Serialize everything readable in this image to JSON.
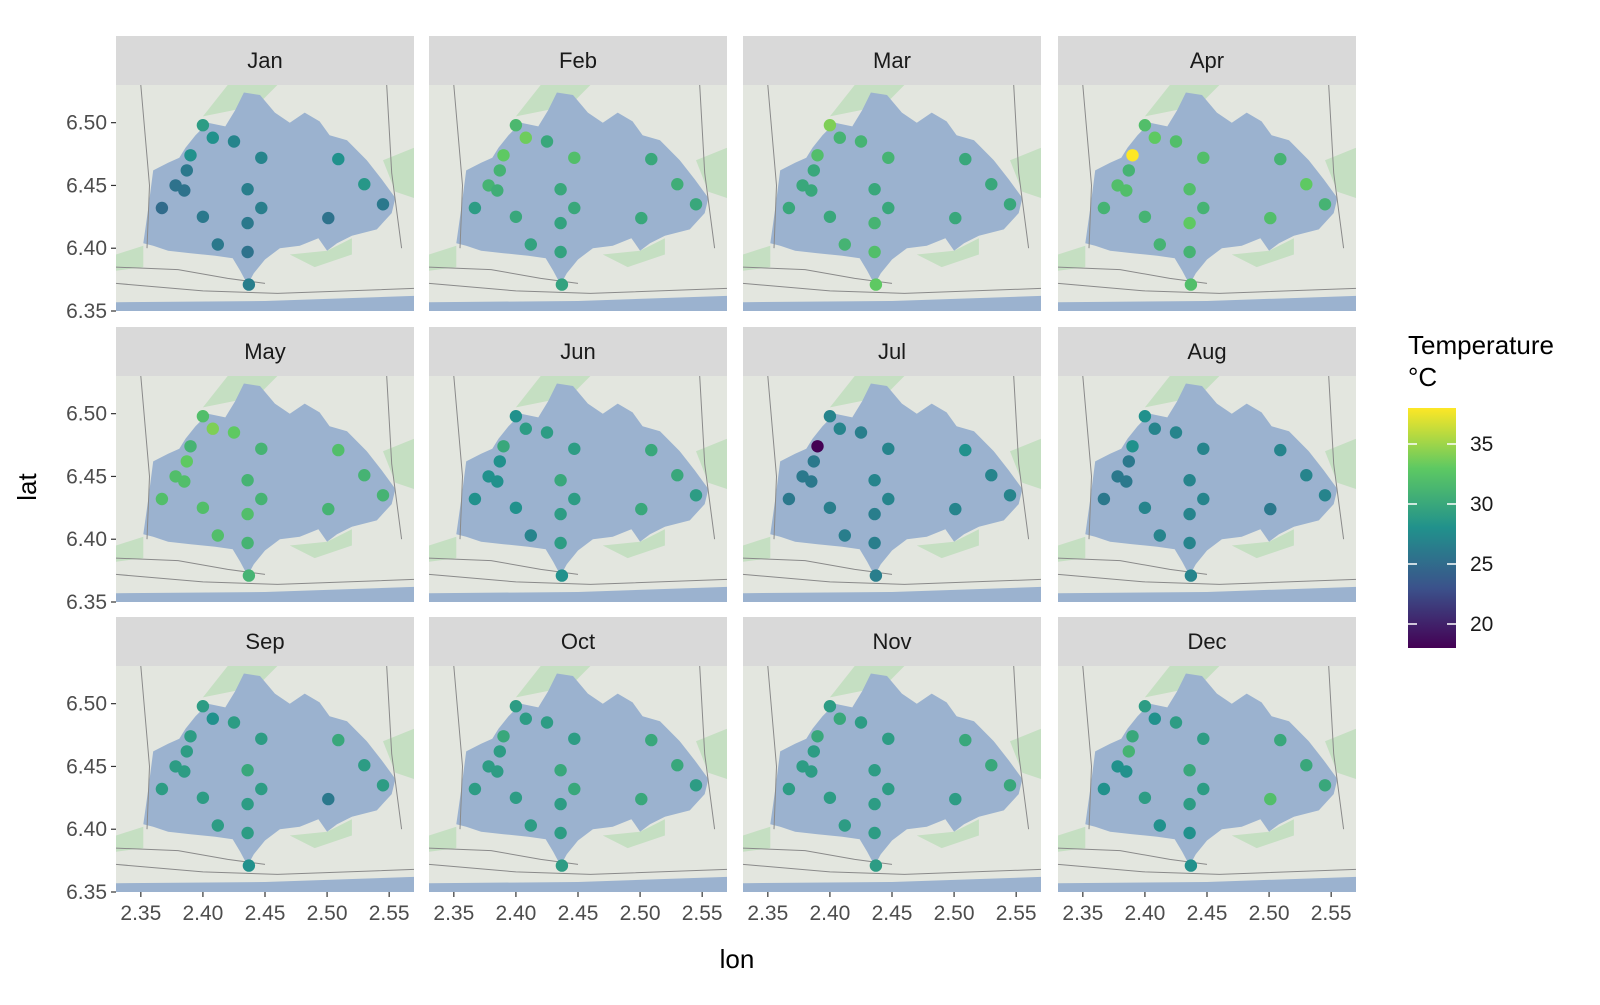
{
  "chart_data": {
    "type": "scatter",
    "subtype": "faceted map scatter (12 panels, 3 rows x 4 columns)",
    "xlabel": "lon",
    "ylabel": "lat",
    "xlim": [
      2.33,
      2.57
    ],
    "ylim": [
      6.35,
      6.53
    ],
    "x_ticks": [
      "2.35",
      "2.40",
      "2.45",
      "2.50",
      "2.55"
    ],
    "y_ticks": [
      "6.35",
      "6.40",
      "6.45",
      "6.50"
    ],
    "grid": false,
    "legend": {
      "title": "Temperature\n°C",
      "position": "right",
      "type": "colorbar",
      "range": [
        18,
        38
      ],
      "ticks": [
        "20",
        "25",
        "30",
        "35"
      ],
      "palette": "viridis",
      "colors": [
        "#440154",
        "#3b528b",
        "#21918c",
        "#5ec962",
        "#fde725"
      ]
    },
    "map_colors": {
      "water": "#9bb2cf",
      "land": "#e3e6df",
      "green": "#c5dfc2"
    },
    "stations": [
      {
        "lon": 2.367,
        "lat": 6.432
      },
      {
        "lon": 2.378,
        "lat": 6.45
      },
      {
        "lon": 2.385,
        "lat": 6.446
      },
      {
        "lon": 2.387,
        "lat": 6.462
      },
      {
        "lon": 2.39,
        "lat": 6.474
      },
      {
        "lon": 2.4,
        "lat": 6.498
      },
      {
        "lon": 2.408,
        "lat": 6.488
      },
      {
        "lon": 2.4,
        "lat": 6.425
      },
      {
        "lon": 2.412,
        "lat": 6.403
      },
      {
        "lon": 2.425,
        "lat": 6.485
      },
      {
        "lon": 2.436,
        "lat": 6.447
      },
      {
        "lon": 2.436,
        "lat": 6.42
      },
      {
        "lon": 2.436,
        "lat": 6.397
      },
      {
        "lon": 2.437,
        "lat": 6.371
      },
      {
        "lon": 2.447,
        "lat": 6.472
      },
      {
        "lon": 2.447,
        "lat": 6.432
      },
      {
        "lon": 2.501,
        "lat": 6.424
      },
      {
        "lon": 2.509,
        "lat": 6.471
      },
      {
        "lon": 2.53,
        "lat": 6.451
      },
      {
        "lon": 2.545,
        "lat": 6.435
      }
    ],
    "series": [
      {
        "name": "Jan",
        "values": [
          25,
          25.5,
          25.5,
          26,
          28,
          29,
          28,
          26,
          26,
          27,
          26.5,
          26,
          25.5,
          26.5,
          27,
          26.5,
          25.5,
          28,
          28.5,
          26
        ]
      },
      {
        "name": "Feb",
        "values": [
          29,
          31,
          30.5,
          31,
          33,
          31.5,
          33.5,
          30,
          29.5,
          30,
          30,
          29.5,
          29.5,
          29.5,
          32,
          30,
          30,
          30,
          30.5,
          30
        ]
      },
      {
        "name": "Mar",
        "values": [
          30,
          30,
          30,
          30,
          32,
          34,
          31,
          30,
          31,
          31,
          30,
          31,
          32,
          33,
          31,
          30,
          30,
          30,
          30,
          30
        ]
      },
      {
        "name": "Apr",
        "values": [
          31,
          32,
          32,
          31,
          38,
          32,
          33,
          31,
          31,
          32,
          32,
          33,
          31,
          32,
          32,
          31,
          32,
          31,
          33,
          31
        ]
      },
      {
        "name": "May",
        "values": [
          32,
          32,
          32,
          33,
          31,
          32,
          34,
          32,
          32,
          33,
          31,
          32,
          31,
          31,
          31,
          31,
          31,
          32,
          31,
          31
        ]
      },
      {
        "name": "Jun",
        "values": [
          28,
          28,
          28,
          28,
          30,
          28,
          29,
          28,
          27,
          29,
          30,
          29,
          29,
          28,
          29,
          29,
          30,
          30,
          30,
          29
        ]
      },
      {
        "name": "Jul",
        "values": [
          26,
          26,
          26,
          26,
          18,
          27,
          27,
          26.5,
          26.5,
          26.5,
          27,
          26.5,
          26.5,
          26.5,
          27,
          27,
          27,
          28,
          27,
          27
        ]
      },
      {
        "name": "Aug",
        "values": [
          26,
          26,
          26,
          26,
          28,
          28,
          27,
          27,
          27,
          27,
          27,
          27,
          27,
          27,
          27,
          27,
          26,
          27,
          27,
          27
        ]
      },
      {
        "name": "Sep",
        "values": [
          29,
          29,
          29,
          29,
          29,
          29,
          28,
          29,
          29,
          29,
          30,
          29,
          29,
          28,
          29,
          29,
          26,
          30,
          29,
          29
        ]
      },
      {
        "name": "Oct",
        "values": [
          29,
          29,
          29,
          29,
          30,
          29,
          29,
          29,
          29,
          29,
          30,
          29,
          29,
          29,
          29,
          30,
          30,
          30,
          30,
          29
        ]
      },
      {
        "name": "Nov",
        "values": [
          29,
          29,
          29,
          29,
          30,
          29,
          30,
          29,
          29,
          29,
          29,
          29,
          29,
          29,
          29,
          29,
          29,
          30,
          30,
          30
        ]
      },
      {
        "name": "Dec",
        "values": [
          28,
          28,
          28,
          31,
          30,
          29,
          28,
          29,
          28,
          29,
          30,
          29,
          28,
          28,
          29,
          29,
          32,
          30,
          30,
          30
        ]
      }
    ]
  }
}
